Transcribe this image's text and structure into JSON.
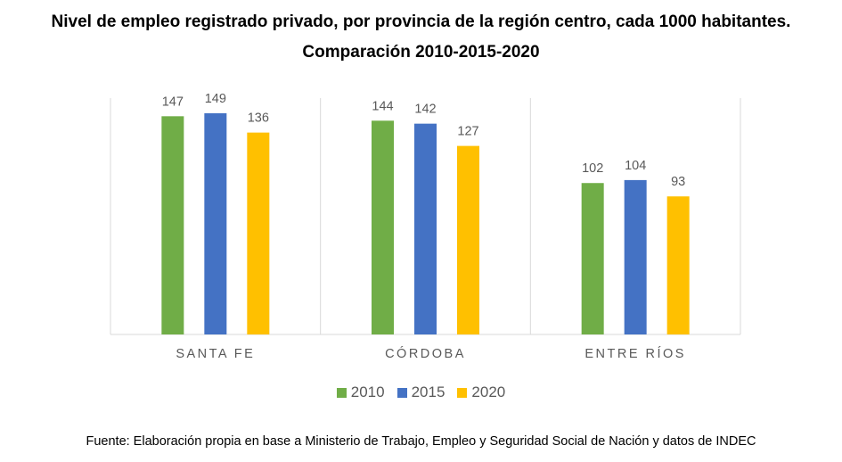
{
  "header": {
    "title_line1": "Nivel de empleo registrado privado, por provincia de la región centro, cada 1000 habitantes.",
    "title_line2": "Comparación 2010-2015-2020"
  },
  "chart_data": {
    "type": "bar",
    "categories": [
      "SANTA FE",
      "CÓRDOBA",
      "ENTRE RÍOS"
    ],
    "series": [
      {
        "name": "2010",
        "values": [
          147,
          144,
          102
        ],
        "color": "#70AD47"
      },
      {
        "name": "2015",
        "values": [
          149,
          142,
          104
        ],
        "color": "#4472C4"
      },
      {
        "name": "2020",
        "values": [
          136,
          127,
          93
        ],
        "color": "#FFC000"
      }
    ],
    "ylim": [
      0,
      160
    ],
    "grid": "vertical separators only",
    "legend": "bottom"
  },
  "source": "Fuente: Elaboración propia en base a Ministerio de Trabajo, Empleo y Seguridad Social de Nación y datos de INDEC"
}
